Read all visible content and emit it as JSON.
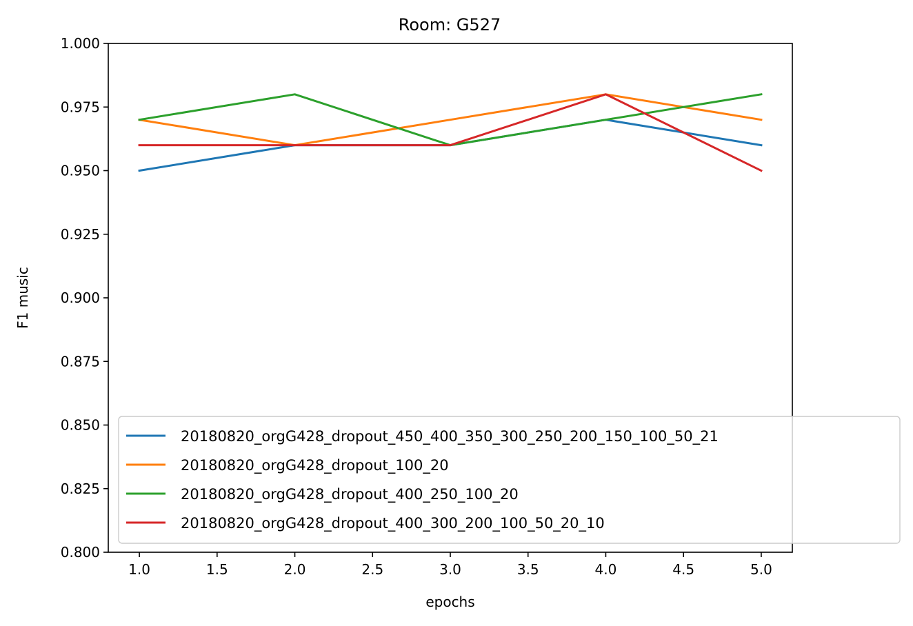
{
  "chart_data": {
    "type": "line",
    "title": "Room: G527",
    "xlabel": "epochs",
    "ylabel": "F1 music",
    "xlim": [
      0.8,
      5.2
    ],
    "ylim": [
      0.8,
      1.0
    ],
    "xticks": [
      "1.0",
      "1.5",
      "2.0",
      "2.5",
      "3.0",
      "3.5",
      "4.0",
      "4.5",
      "5.0"
    ],
    "yticks": [
      "0.800",
      "0.825",
      "0.850",
      "0.875",
      "0.900",
      "0.925",
      "0.950",
      "0.975",
      "1.000"
    ],
    "grid": false,
    "legend_position": "lower-right",
    "x": [
      1,
      2,
      3,
      4,
      5
    ],
    "series": [
      {
        "name": "20180820_orgG428_dropout_450_400_350_300_250_200_150_100_50_21",
        "color": "#1f77b4",
        "values": [
          0.95,
          0.96,
          0.96,
          0.97,
          0.96
        ]
      },
      {
        "name": "20180820_orgG428_dropout_100_20",
        "color": "#ff7f0e",
        "values": [
          0.97,
          0.96,
          0.97,
          0.98,
          0.97
        ]
      },
      {
        "name": "20180820_orgG428_dropout_400_250_100_20",
        "color": "#2ca02c",
        "values": [
          0.97,
          0.98,
          0.96,
          0.97,
          0.98
        ]
      },
      {
        "name": "20180820_orgG428_dropout_400_300_200_100_50_20_10",
        "color": "#d62728",
        "values": [
          0.96,
          0.96,
          0.96,
          0.98,
          0.95
        ]
      }
    ]
  }
}
